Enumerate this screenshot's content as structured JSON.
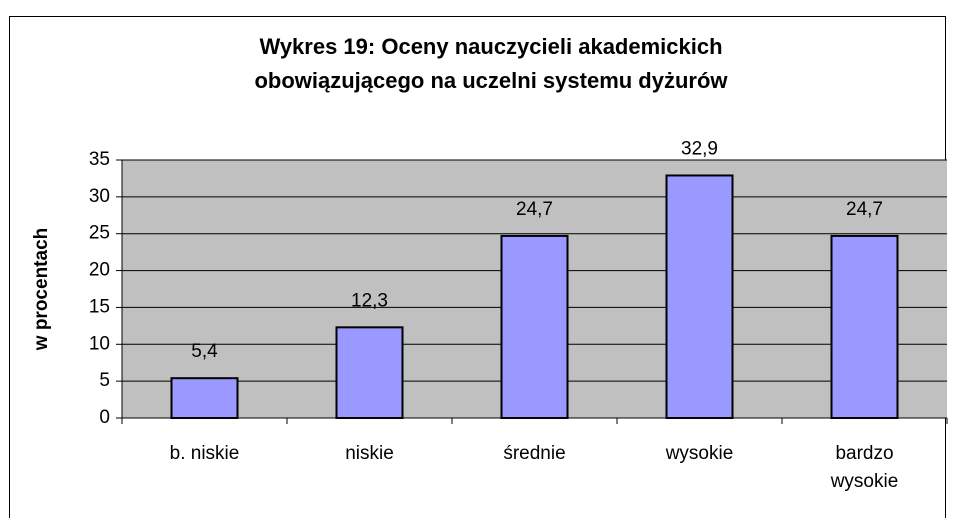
{
  "chart_data": {
    "type": "bar",
    "title": [
      "Wykres 19: Oceny nauczycieli akademickich",
      "obowiązującego na uczelni systemu dyżurów"
    ],
    "ylabel": "w procentach",
    "categories": [
      "b. niskie",
      "niskie",
      "średnie",
      "wysokie",
      "bardzo wysokie"
    ],
    "values": [
      5.4,
      12.3,
      24.7,
      32.9,
      24.7
    ],
    "value_labels": [
      "5,4",
      "12,3",
      "24,7",
      "32,9",
      "24,7"
    ],
    "color": "#9999ff",
    "ylim": [
      0,
      35
    ],
    "yticks": [
      0,
      5,
      10,
      15,
      20,
      25,
      30,
      35
    ],
    "grid": true
  }
}
